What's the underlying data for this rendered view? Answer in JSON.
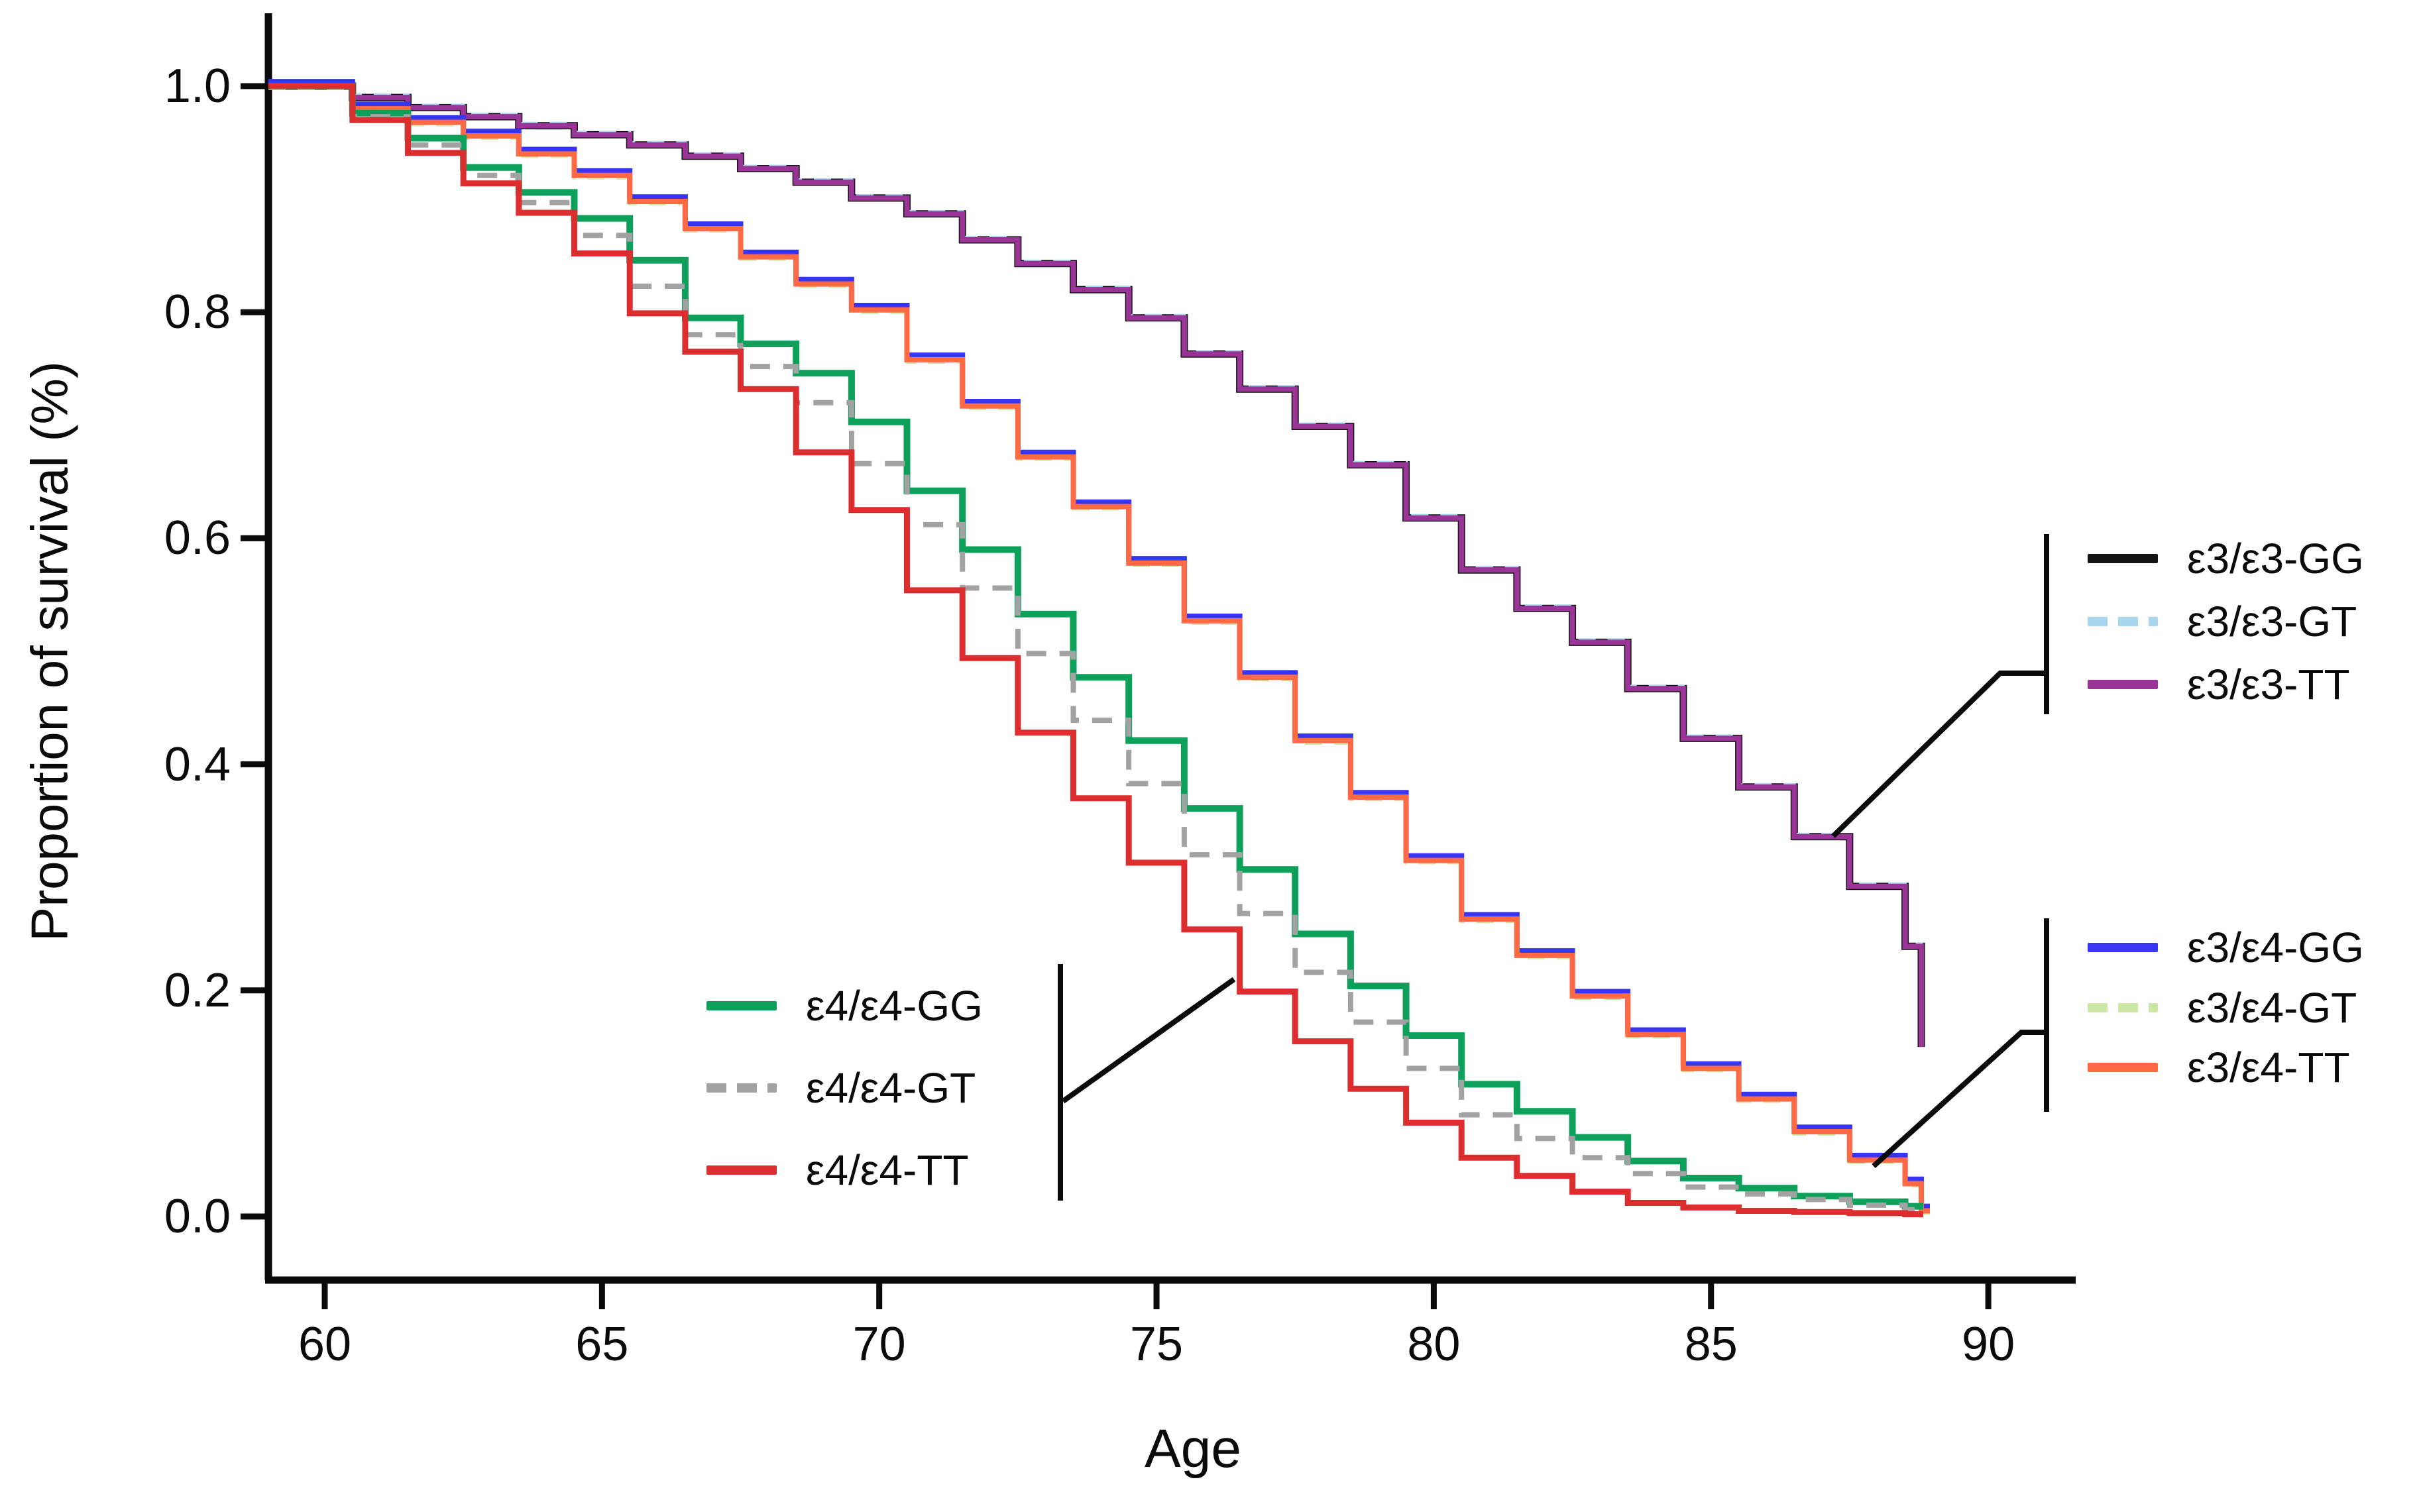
{
  "y_axis": {
    "label": "Proportion of survival (%)",
    "ticks": [
      {
        "text": "1.0",
        "value": 1.0
      },
      {
        "text": "0.8",
        "value": 0.8
      },
      {
        "text": "0.6",
        "value": 0.6
      },
      {
        "text": "0.4",
        "value": 0.4
      },
      {
        "text": "0.2",
        "value": 0.2
      },
      {
        "text": "0.0",
        "value": 0.0
      }
    ]
  },
  "x_axis": {
    "label": "Age",
    "ticks": [
      {
        "text": "60",
        "value": 60
      },
      {
        "text": "65",
        "value": 65
      },
      {
        "text": "70",
        "value": 70
      },
      {
        "text": "75",
        "value": 75
      },
      {
        "text": "80",
        "value": 80
      },
      {
        "text": "85",
        "value": 85
      },
      {
        "text": "90",
        "value": 90
      }
    ]
  },
  "colors": {
    "e3e3_gg": "#141414",
    "e3e3_gt": "#A8D6ED",
    "e3e3_tt": "#9A3496",
    "e3e4_gg": "#3535F3",
    "e3e4_gt": "#CCE6A4",
    "e3e4_tt": "#FF6A45",
    "e4e4_gg": "#0CA05A",
    "e4e4_gt": "#A2A2A2",
    "e4e4_tt": "#DC2E2E"
  },
  "legends": [
    {
      "group": "e3e3",
      "items": [
        {
          "label": "ε3/ε3-GG",
          "color_key": "e3e3_gg",
          "dashed": false
        },
        {
          "label": "ε3/ε3-GT",
          "color_key": "e3e3_gt",
          "dashed": true
        },
        {
          "label": "ε3/ε3-TT",
          "color_key": "e3e3_tt",
          "dashed": false
        }
      ]
    },
    {
      "group": "e3e4",
      "items": [
        {
          "label": "ε3/ε4-GG",
          "color_key": "e3e4_gg",
          "dashed": false
        },
        {
          "label": "ε3/ε4-GT",
          "color_key": "e3e4_gt",
          "dashed": true
        },
        {
          "label": "ε3/ε4-TT",
          "color_key": "e3e4_tt",
          "dashed": false
        }
      ]
    },
    {
      "group": "e4e4",
      "items": [
        {
          "label": "ε4/ε4-GG",
          "color_key": "e4e4_gg",
          "dashed": false
        },
        {
          "label": "ε4/ε4-GT",
          "color_key": "e4e4_gt",
          "dashed": true
        },
        {
          "label": "ε4/ε4-TT",
          "color_key": "e4e4_tt",
          "dashed": false
        }
      ]
    }
  ],
  "chart_data": {
    "type": "line",
    "subtype": "step-survival",
    "title": "",
    "xlabel": "Age",
    "ylabel": "Proportion of survival (%)",
    "xlim": [
      58.9,
      91.7
    ],
    "ylim": [
      0.0,
      1.05
    ],
    "grid": false,
    "start_value": 1.0,
    "first_step_age": 60.5,
    "step_ages": [
      61,
      62,
      63,
      64,
      65,
      66,
      67,
      68,
      69,
      70,
      71,
      72,
      73,
      74,
      75,
      76,
      77,
      78,
      79,
      80,
      81,
      82,
      83,
      84,
      85,
      86,
      87,
      88,
      89
    ],
    "series": [
      {
        "name": "ε3/ε3-GG",
        "color_key": "e3e3_gg",
        "dashed": false,
        "values": [
          0.99,
          0.981,
          0.973,
          0.965,
          0.957,
          0.948,
          0.938,
          0.927,
          0.915,
          0.901,
          0.887,
          0.864,
          0.843,
          0.82,
          0.795,
          0.763,
          0.732,
          0.699,
          0.665,
          0.618,
          0.572,
          0.538,
          0.508,
          0.467,
          0.423,
          0.38,
          0.336,
          0.292,
          0.239
        ],
        "end_value": 0.15
      },
      {
        "name": "ε3/ε3-GT",
        "color_key": "e3e3_gt",
        "dashed": true,
        "values": [
          0.99,
          0.981,
          0.973,
          0.965,
          0.957,
          0.948,
          0.938,
          0.927,
          0.915,
          0.901,
          0.887,
          0.864,
          0.843,
          0.82,
          0.795,
          0.763,
          0.732,
          0.699,
          0.665,
          0.618,
          0.572,
          0.538,
          0.508,
          0.467,
          0.423,
          0.38,
          0.336,
          0.292,
          0.239
        ],
        "end_value": 0.15
      },
      {
        "name": "ε3/ε3-TT",
        "color_key": "e3e3_tt",
        "dashed": false,
        "values": [
          0.99,
          0.981,
          0.973,
          0.965,
          0.957,
          0.948,
          0.938,
          0.927,
          0.915,
          0.901,
          0.887,
          0.864,
          0.843,
          0.82,
          0.795,
          0.763,
          0.732,
          0.699,
          0.665,
          0.618,
          0.572,
          0.538,
          0.508,
          0.467,
          0.423,
          0.38,
          0.336,
          0.292,
          0.239
        ],
        "end_value": 0.15
      },
      {
        "name": "ε3/ε4-GG",
        "color_key": "e3e4_gg",
        "dashed": false,
        "values": [
          0.98,
          0.968,
          0.956,
          0.94,
          0.921,
          0.898,
          0.874,
          0.849,
          0.825,
          0.802,
          0.758,
          0.717,
          0.672,
          0.628,
          0.578,
          0.527,
          0.477,
          0.421,
          0.371,
          0.315,
          0.263,
          0.231,
          0.195,
          0.161,
          0.131,
          0.104,
          0.075,
          0.05,
          0.029
        ],
        "end_value": 0.005
      },
      {
        "name": "ε3/ε4-GT",
        "color_key": "e3e4_gt",
        "dashed": true,
        "values": [
          0.98,
          0.968,
          0.956,
          0.94,
          0.921,
          0.898,
          0.874,
          0.849,
          0.825,
          0.802,
          0.758,
          0.717,
          0.672,
          0.628,
          0.578,
          0.527,
          0.477,
          0.421,
          0.371,
          0.315,
          0.263,
          0.231,
          0.195,
          0.161,
          0.131,
          0.104,
          0.075,
          0.05,
          0.029
        ],
        "end_value": 0.005
      },
      {
        "name": "ε3/ε4-TT",
        "color_key": "e3e4_tt",
        "dashed": false,
        "values": [
          0.98,
          0.968,
          0.956,
          0.94,
          0.921,
          0.898,
          0.874,
          0.849,
          0.825,
          0.802,
          0.758,
          0.717,
          0.672,
          0.628,
          0.578,
          0.527,
          0.477,
          0.421,
          0.371,
          0.315,
          0.263,
          0.231,
          0.195,
          0.161,
          0.131,
          0.104,
          0.075,
          0.05,
          0.029
        ],
        "end_value": 0.005
      },
      {
        "name": "ε4/ε4-GG",
        "color_key": "e4e4_gg",
        "dashed": false,
        "values": [
          0.976,
          0.954,
          0.928,
          0.906,
          0.883,
          0.846,
          0.795,
          0.772,
          0.746,
          0.703,
          0.642,
          0.59,
          0.533,
          0.477,
          0.421,
          0.361,
          0.307,
          0.25,
          0.204,
          0.16,
          0.117,
          0.093,
          0.07,
          0.049,
          0.034,
          0.025,
          0.018,
          0.013,
          0.009
        ],
        "end_value": null
      },
      {
        "name": "ε4/ε4-GT",
        "color_key": "e4e4_gt",
        "dashed": true,
        "values": [
          0.973,
          0.948,
          0.921,
          0.897,
          0.868,
          0.823,
          0.78,
          0.752,
          0.72,
          0.666,
          0.612,
          0.556,
          0.498,
          0.439,
          0.383,
          0.32,
          0.268,
          0.216,
          0.172,
          0.131,
          0.09,
          0.069,
          0.052,
          0.038,
          0.026,
          0.02,
          0.015,
          0.01,
          0.006
        ],
        "end_value": null
      },
      {
        "name": "ε4/ε4-TT",
        "color_key": "e4e4_tt",
        "dashed": false,
        "values": [
          0.97,
          0.941,
          0.914,
          0.888,
          0.852,
          0.799,
          0.765,
          0.732,
          0.676,
          0.625,
          0.554,
          0.494,
          0.428,
          0.37,
          0.313,
          0.254,
          0.199,
          0.155,
          0.113,
          0.083,
          0.052,
          0.036,
          0.022,
          0.012,
          0.008,
          0.005,
          0.004,
          0.003,
          0.002
        ],
        "end_value": null
      }
    ],
    "legend_position": "right-and-inside-left"
  }
}
